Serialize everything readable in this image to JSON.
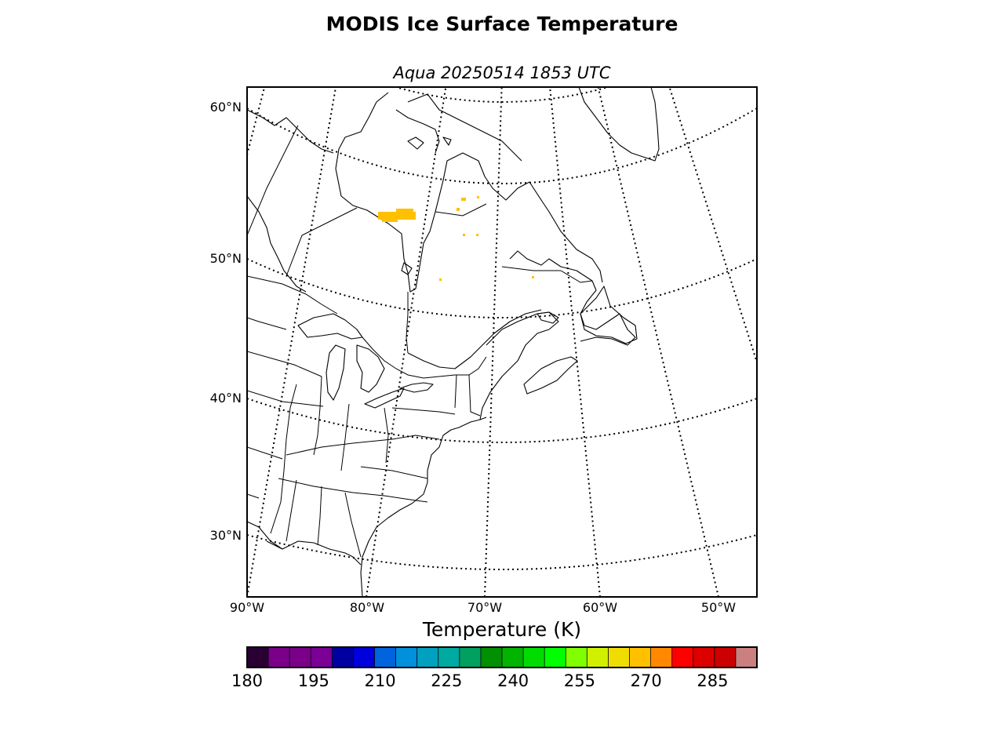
{
  "figure": {
    "title": "MODIS Ice Surface Temperature",
    "subtitle": "Aqua 20250514 1853 UTC"
  },
  "map": {
    "lat_labels": [
      "60°N",
      "50°N",
      "40°N",
      "30°N"
    ],
    "lon_labels": [
      "90°W",
      "80°W",
      "70°W",
      "60°W",
      "50°W"
    ],
    "ice_color": "#ffc000"
  },
  "colorbar": {
    "label": "Temperature (K)",
    "min": 180,
    "max": 295,
    "step": 5,
    "ticks": [
      "180",
      "195",
      "210",
      "225",
      "240",
      "255",
      "270",
      "285"
    ],
    "colors": [
      "#2a0033",
      "#7a008a",
      "#7a008a",
      "#7a0096",
      "#0000a0",
      "#0000dc",
      "#0064dc",
      "#0090dc",
      "#00a0c0",
      "#00aaa0",
      "#00a060",
      "#009000",
      "#00b400",
      "#00dc00",
      "#00ff00",
      "#80ff00",
      "#d0f000",
      "#f0dc00",
      "#ffc000",
      "#ff8800",
      "#ff0000",
      "#dc0000",
      "#cc0000",
      "#cc7f7f"
    ]
  }
}
